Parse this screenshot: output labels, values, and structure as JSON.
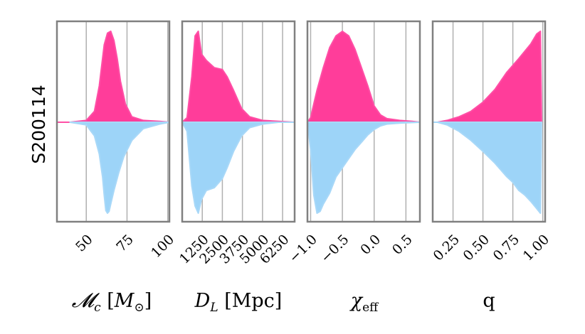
{
  "figure": {
    "row_label": "S200114"
  },
  "colors": {
    "top": "#ff3d9a",
    "bottom": "#9dd4f8",
    "top_edge": "#ff4fa6",
    "bottom_edge": "#a8d8f8",
    "grid": "#b0b0b0",
    "frame": "#808080"
  },
  "chart_data": [
    {
      "type": "area",
      "subtype": "split-violin",
      "xlabel": "𝓜c [M⊙]",
      "xlim": [
        32,
        101
      ],
      "xticks": [
        50,
        75,
        100
      ],
      "xtick_labels": [
        "50",
        "75",
        "100"
      ],
      "series": [
        {
          "name": "upper",
          "x": [
            32,
            40,
            50,
            55,
            58,
            61,
            63,
            65,
            67,
            69,
            71,
            74,
            78,
            85,
            95,
            101
          ],
          "density": [
            0.0,
            0.0,
            0.02,
            0.12,
            0.4,
            0.85,
            0.98,
            1.0,
            0.9,
            0.7,
            0.45,
            0.2,
            0.06,
            0.02,
            0.01,
            0.0
          ]
        },
        {
          "name": "lower",
          "x": [
            40,
            50,
            55,
            58,
            60,
            61,
            62,
            63,
            64,
            65,
            67,
            70,
            73,
            78,
            85,
            95,
            101
          ],
          "density": [
            0.0,
            0.03,
            0.15,
            0.35,
            0.6,
            0.8,
            0.97,
            1.0,
            0.98,
            0.9,
            0.75,
            0.55,
            0.38,
            0.2,
            0.07,
            0.02,
            0.0
          ]
        }
      ]
    },
    {
      "type": "area",
      "subtype": "split-violin",
      "xlabel": "DL [Mpc]",
      "xlim": [
        0,
        7000
      ],
      "xticks": [
        1250,
        2500,
        3750,
        5000,
        6250
      ],
      "xtick_labels": [
        "1250",
        "2500",
        "3750",
        "5000",
        "6250"
      ],
      "series": [
        {
          "name": "upper",
          "x": [
            0,
            300,
            600,
            800,
            1000,
            1200,
            1500,
            2000,
            2500,
            2800,
            3200,
            3700,
            4200,
            5000,
            6000,
            7000
          ],
          "density": [
            0.0,
            0.05,
            0.5,
            0.95,
            1.0,
            0.75,
            0.68,
            0.6,
            0.58,
            0.5,
            0.35,
            0.15,
            0.06,
            0.02,
            0.01,
            0.0
          ]
        },
        {
          "name": "lower",
          "x": [
            0,
            300,
            600,
            800,
            1000,
            1200,
            1500,
            2000,
            2500,
            2800,
            3200,
            3700,
            4200,
            5000,
            6000,
            7000
          ],
          "density": [
            0.0,
            0.1,
            0.7,
            0.92,
            1.0,
            0.85,
            0.75,
            0.72,
            0.62,
            0.5,
            0.32,
            0.15,
            0.06,
            0.02,
            0.0,
            0.0
          ]
        }
      ]
    },
    {
      "type": "area",
      "subtype": "split-violin",
      "xlabel": "χeff",
      "xlim": [
        -1.05,
        0.72
      ],
      "xticks": [
        -1.0,
        -0.5,
        0.0,
        0.5
      ],
      "xtick_labels": [
        "−1.0",
        "−0.5",
        "0.0",
        "0.5"
      ],
      "series": [
        {
          "name": "upper",
          "x": [
            -1.05,
            -1.0,
            -0.95,
            -0.9,
            -0.8,
            -0.7,
            -0.6,
            -0.5,
            -0.4,
            -0.3,
            -0.2,
            -0.1,
            0.0,
            0.1,
            0.2,
            0.4,
            0.6,
            0.72
          ],
          "density": [
            0.0,
            0.05,
            0.2,
            0.35,
            0.6,
            0.82,
            0.95,
            1.0,
            0.95,
            0.8,
            0.6,
            0.4,
            0.18,
            0.08,
            0.04,
            0.02,
            0.01,
            0.0
          ]
        },
        {
          "name": "lower",
          "x": [
            -1.05,
            -1.0,
            -0.95,
            -0.9,
            -0.85,
            -0.8,
            -0.7,
            -0.6,
            -0.5,
            -0.4,
            -0.3,
            -0.2,
            -0.1,
            0.0,
            0.1,
            0.2,
            0.4,
            0.72
          ],
          "density": [
            0.0,
            0.3,
            0.8,
            1.0,
            0.98,
            0.9,
            0.78,
            0.6,
            0.5,
            0.4,
            0.3,
            0.22,
            0.14,
            0.08,
            0.04,
            0.02,
            0.01,
            0.0
          ]
        }
      ]
    },
    {
      "type": "area",
      "subtype": "split-violin",
      "xlabel": "q",
      "xlim": [
        0.08,
        1.02
      ],
      "xticks": [
        0.25,
        0.5,
        0.75,
        1.0
      ],
      "xtick_labels": [
        "0.25",
        "0.50",
        "0.75",
        "1.00"
      ],
      "series": [
        {
          "name": "upper",
          "x": [
            0.08,
            0.12,
            0.2,
            0.3,
            0.4,
            0.5,
            0.6,
            0.7,
            0.8,
            0.9,
            0.95,
            0.98,
            0.99
          ],
          "density": [
            0.0,
            0.0,
            0.02,
            0.06,
            0.12,
            0.22,
            0.36,
            0.55,
            0.7,
            0.86,
            0.97,
            1.0,
            0.0
          ]
        },
        {
          "name": "lower",
          "x": [
            0.08,
            0.12,
            0.2,
            0.3,
            0.4,
            0.5,
            0.6,
            0.7,
            0.75,
            0.8,
            0.85,
            0.9,
            0.95,
            0.98,
            0.99
          ],
          "density": [
            0.0,
            0.0,
            0.03,
            0.1,
            0.2,
            0.32,
            0.45,
            0.6,
            0.66,
            0.75,
            0.8,
            0.87,
            0.95,
            1.0,
            0.0
          ]
        }
      ]
    }
  ]
}
